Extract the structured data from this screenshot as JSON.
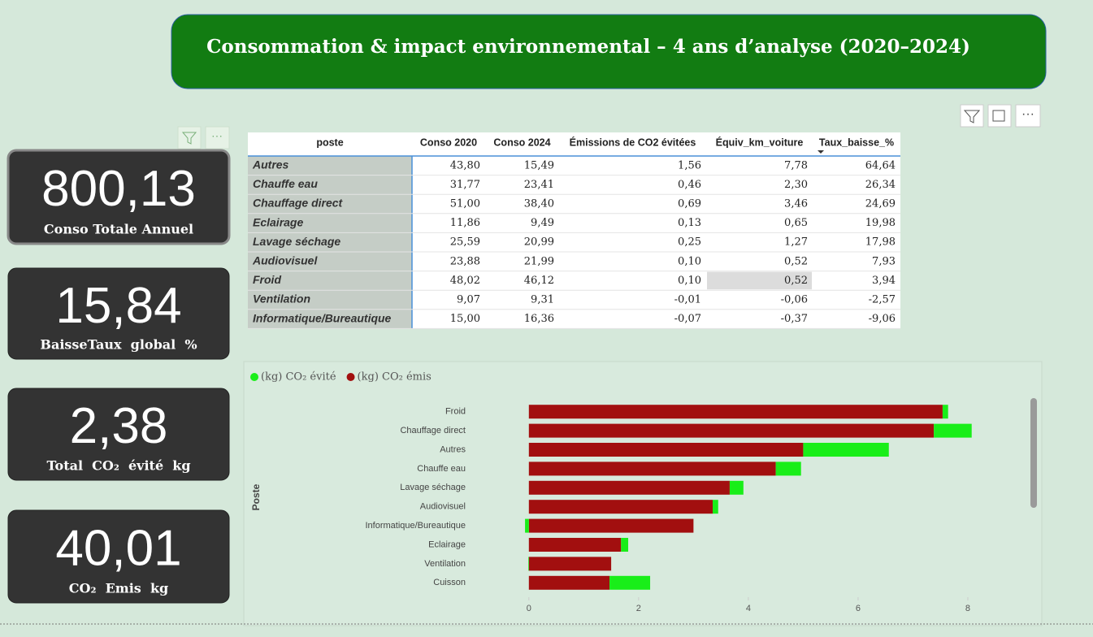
{
  "header": {
    "title": "Consommation & impact environnemental – 4 ans d’analyse (2020–2024)"
  },
  "kpis": [
    {
      "value": "800,13",
      "label": "Conso Totale Annuel"
    },
    {
      "value": "15,84",
      "label": "BaisseTaux  global  %"
    },
    {
      "value": "2,38",
      "label": "Total  CO₂  évité  kg"
    },
    {
      "value": "40,01",
      "label": "CO₂  Emis  kg"
    }
  ],
  "table": {
    "columns": [
      "poste",
      "Conso 2020",
      "Conso 2024",
      "Émissions de CO2 évitées",
      "Équiv_km_voiture",
      "Taux_baisse_%"
    ],
    "rows": [
      [
        "Autres",
        "43,80",
        "15,49",
        "1,56",
        "7,78",
        "64,64"
      ],
      [
        "Chauffe eau",
        "31,77",
        "23,41",
        "0,46",
        "2,30",
        "26,34"
      ],
      [
        "Chauffage direct",
        "51,00",
        "38,40",
        "0,69",
        "3,46",
        "24,69"
      ],
      [
        "Eclairage",
        "11,86",
        "9,49",
        "0,13",
        "0,65",
        "19,98"
      ],
      [
        "Lavage séchage",
        "25,59",
        "20,99",
        "0,25",
        "1,27",
        "17,98"
      ],
      [
        "Audiovisuel",
        "23,88",
        "21,99",
        "0,10",
        "0,52",
        "7,93"
      ],
      [
        "Froid",
        "48,02",
        "46,12",
        "0,10",
        "0,52",
        "3,94"
      ],
      [
        "Ventilation",
        "9,07",
        "9,31",
        "-0,01",
        "-0,06",
        "-2,57"
      ],
      [
        "Informatique/Bureautique",
        "15,00",
        "16,36",
        "-0,07",
        "-0,37",
        "-9,06"
      ]
    ]
  },
  "chart_data": {
    "type": "stacked-barh",
    "y_label": "Poste",
    "categories": [
      "Froid",
      "Chauffage direct",
      "Autres",
      "Chauffe eau",
      "Lavage séchage",
      "Audiovisuel",
      "Informatique/Bureautique",
      "Eclairage",
      "Ventilation",
      "Cuisson"
    ],
    "series": [
      {
        "name": "(kg) CO₂ évité",
        "color": "#19ee19",
        "values": [
          0.1,
          0.69,
          1.56,
          0.46,
          0.25,
          0.1,
          -0.07,
          0.13,
          -0.01,
          0.74
        ]
      },
      {
        "name": "(kg) CO₂ émis",
        "color": "#a20f0f",
        "values": [
          7.54,
          7.38,
          5.0,
          4.5,
          3.66,
          3.35,
          3.0,
          1.68,
          1.5,
          1.47
        ]
      }
    ],
    "xlim": [
      -0.16,
      8.8
    ],
    "xticks": [
      0,
      2,
      4,
      6,
      8
    ]
  }
}
